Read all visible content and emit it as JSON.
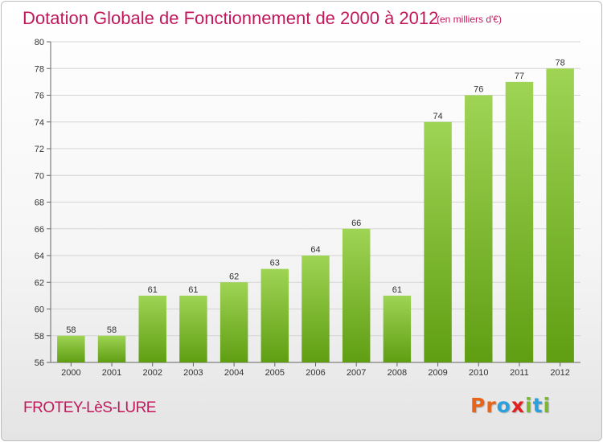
{
  "header": {
    "title": "Dotation Globale de Fonctionnement de 2000 à 2012",
    "subtitle": "(en milliers d'€)"
  },
  "footer": {
    "commune": "FROTEY-LèS-LURE",
    "logo_letters": [
      {
        "char": "P",
        "color": "#e8641b"
      },
      {
        "char": "r",
        "color": "#e8641b"
      },
      {
        "char": "o",
        "color": "#2aa0dc"
      },
      {
        "char": "x",
        "color": "#e02020"
      },
      {
        "char": "i",
        "color": "#7cb82f"
      },
      {
        "char": "t",
        "color": "#2aa0dc"
      },
      {
        "char": "i",
        "color": "#7cb82f"
      }
    ]
  },
  "chart_data": {
    "type": "bar",
    "title": "Dotation Globale de Fonctionnement de 2000 à 2012",
    "subtitle": "(en milliers d'€)",
    "categories": [
      "2000",
      "2001",
      "2002",
      "2003",
      "2004",
      "2005",
      "2006",
      "2007",
      "2008",
      "2009",
      "2010",
      "2011",
      "2012"
    ],
    "values": [
      58,
      58,
      61,
      61,
      62,
      63,
      64,
      66,
      61,
      74,
      76,
      77,
      78
    ],
    "ylim": [
      56,
      80
    ],
    "yticks": [
      56,
      58,
      60,
      62,
      64,
      66,
      68,
      70,
      72,
      74,
      76,
      78,
      80
    ],
    "grid": "y",
    "bar_color_top": "#9fd454",
    "bar_color_bottom": "#5f9e13"
  }
}
